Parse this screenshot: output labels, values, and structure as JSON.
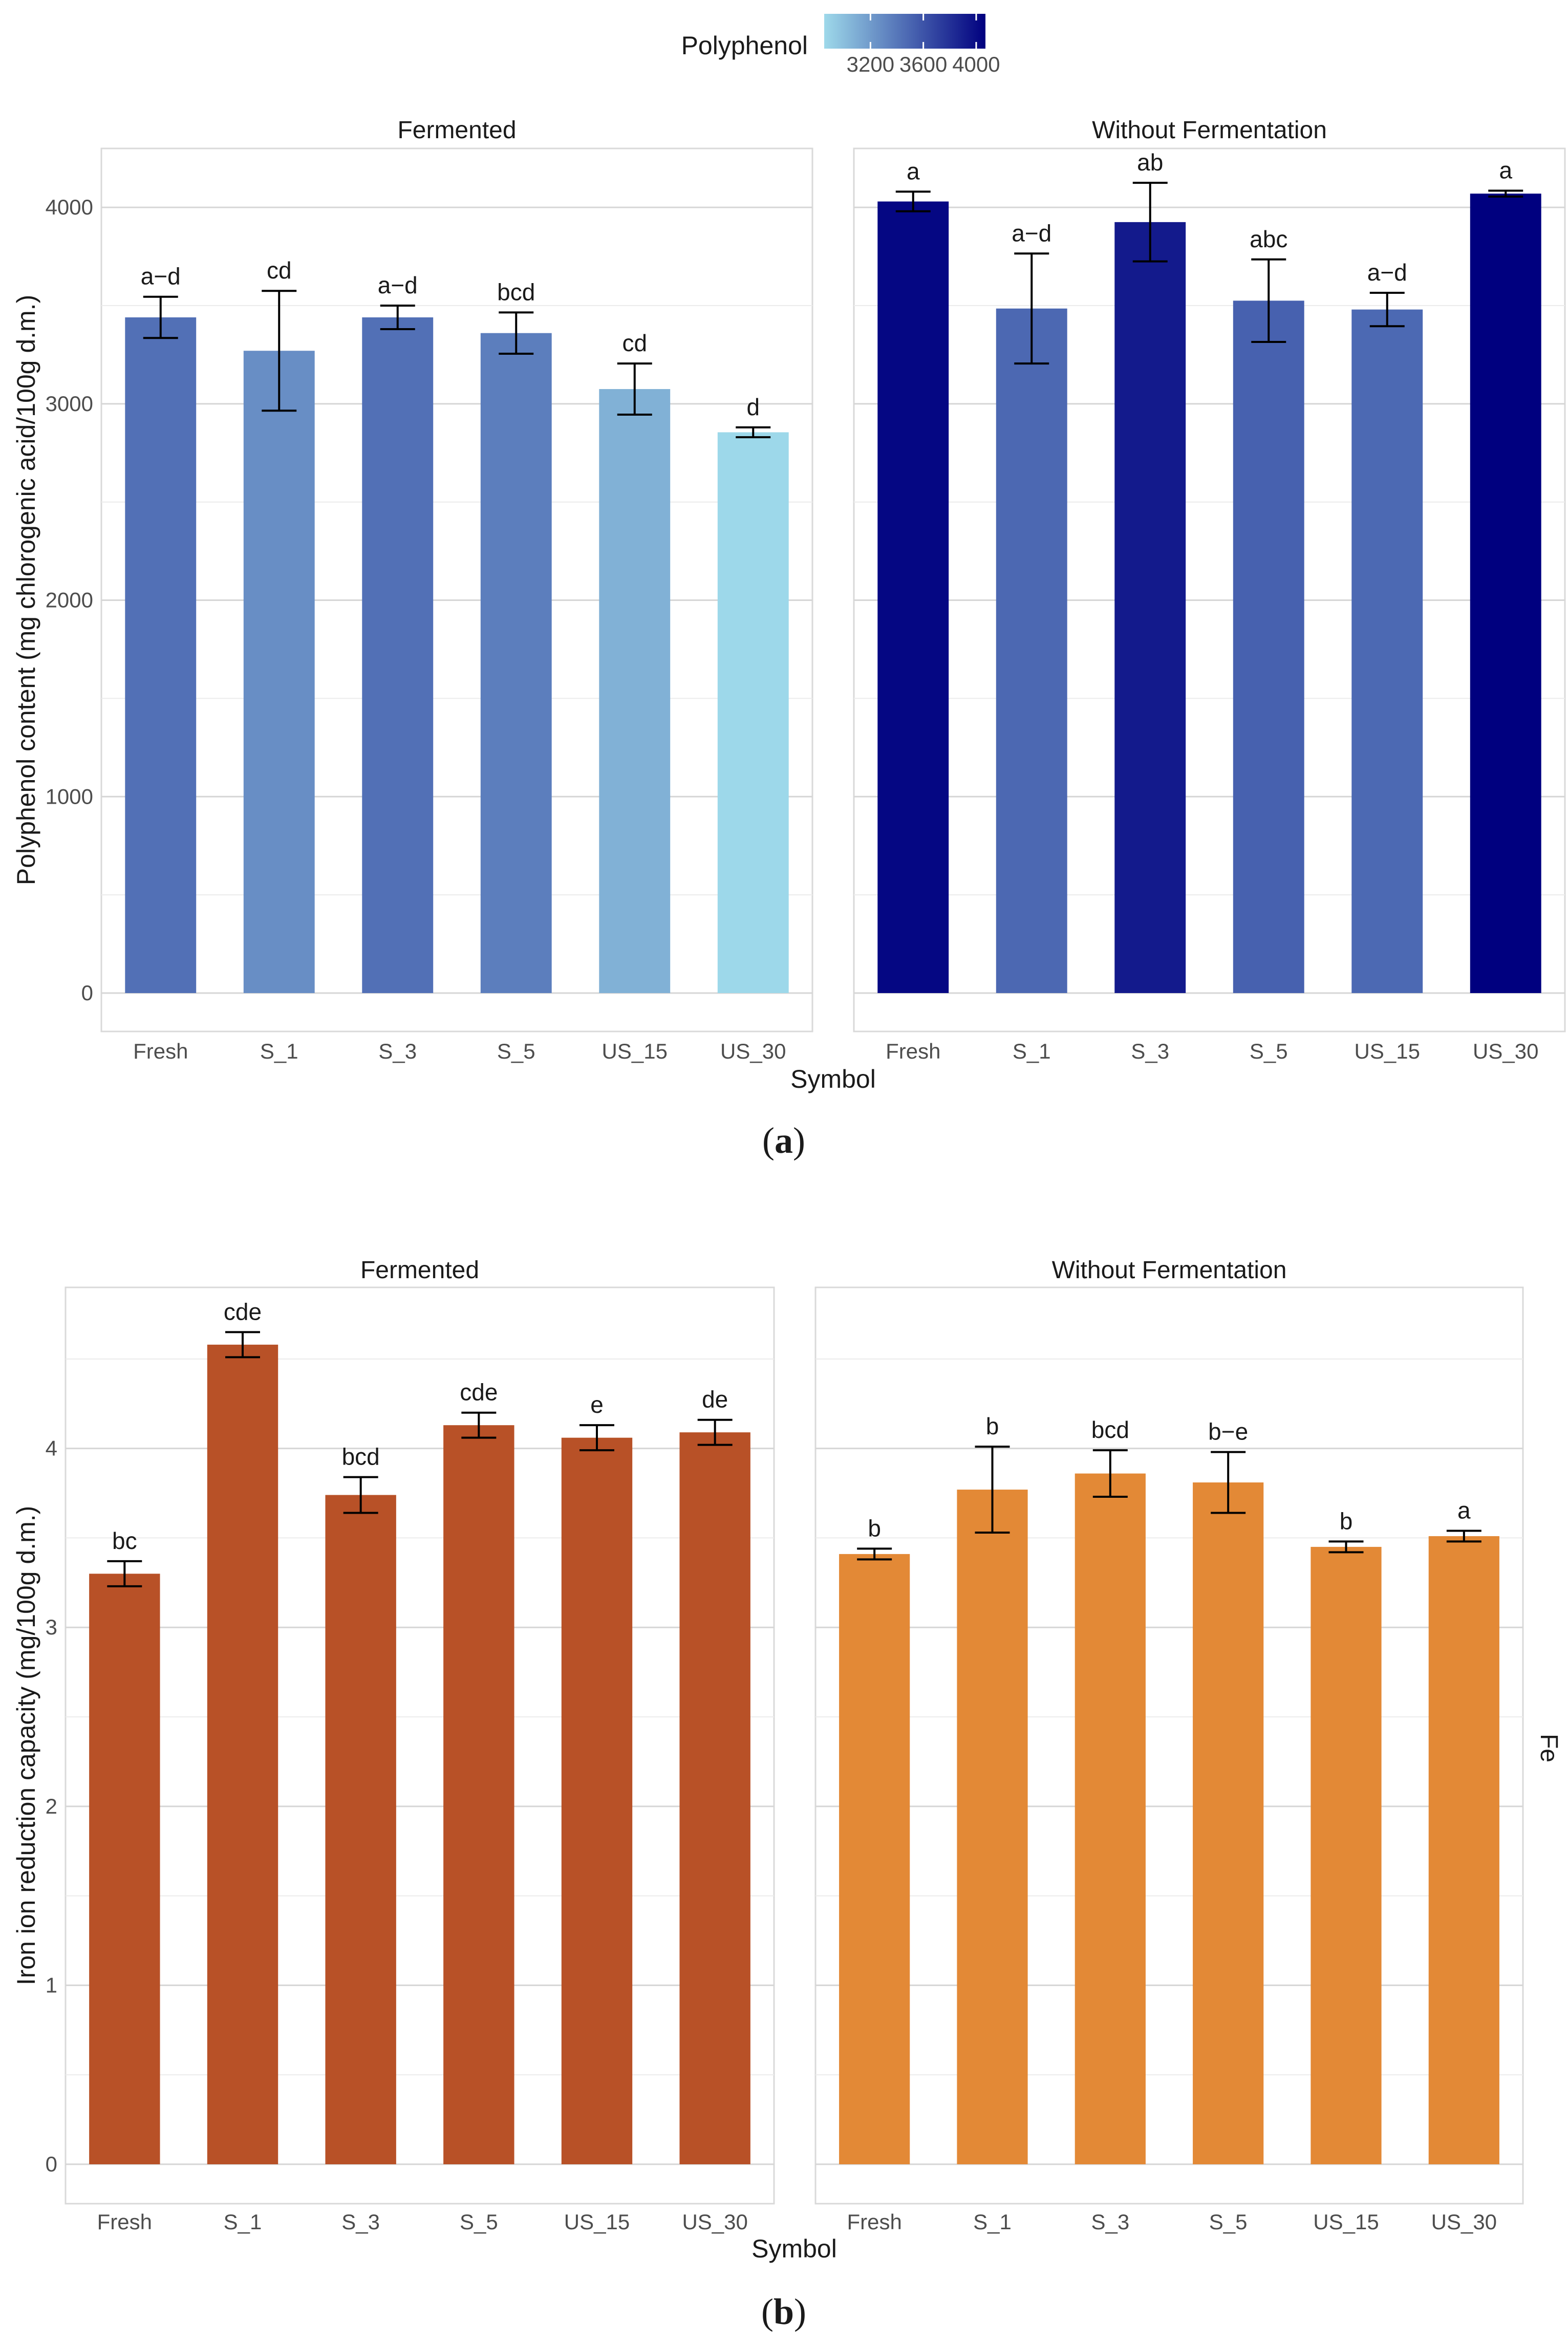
{
  "legend": {
    "title": "Polyphenol",
    "tick_labels": [
      "3200",
      "3600",
      "4000"
    ],
    "domain": [
      2850,
      4070
    ],
    "color_low": "#9ed9ea",
    "color_high": "#00007f"
  },
  "chart_data": [
    {
      "id": "a",
      "type": "bar",
      "caption": {
        "open": "(",
        "letter": "a",
        "close": ")"
      },
      "ylabel": "Polyphenol content (mg chlorogenic acid/100g d.m.)",
      "xlabel": "Symbol",
      "ylim": [
        0,
        4300
      ],
      "yticks": [
        0,
        1000,
        2000,
        3000,
        4000
      ],
      "ytick_labels": [
        "0",
        "1000",
        "2000",
        "3000",
        "4000"
      ],
      "categories": [
        "Fresh",
        "S_1",
        "S_3",
        "S_5",
        "US_15",
        "US_30"
      ],
      "color_mode": "gradient",
      "facets": [
        {
          "name": "Fermented",
          "values": [
            3440,
            3270,
            3440,
            3360,
            3075,
            2855
          ],
          "errors": [
            105,
            305,
            60,
            105,
            130,
            25
          ],
          "labels": [
            "a−d",
            "cd",
            "a−d",
            "bcd",
            "cd",
            "d"
          ]
        },
        {
          "name": "Without Fermentation",
          "values": [
            4030,
            3485,
            3925,
            3525,
            3480,
            4070
          ],
          "errors": [
            50,
            280,
            200,
            210,
            85,
            15
          ],
          "labels": [
            "a",
            "a−d",
            "ab",
            "abc",
            "a−d",
            "a"
          ]
        }
      ]
    },
    {
      "id": "b",
      "type": "bar",
      "caption": {
        "open": "(",
        "letter": "b",
        "close": ")"
      },
      "ylabel": "Iron ion reduction capacity (mg/100g d.m.)",
      "xlabel": "Symbol",
      "strip_right": "Fe",
      "ylim": [
        0,
        4.9
      ],
      "yticks": [
        0,
        1,
        2,
        3,
        4
      ],
      "ytick_labels": [
        "0",
        "1",
        "2",
        "3",
        "4"
      ],
      "categories": [
        "Fresh",
        "S_1",
        "S_3",
        "S_5",
        "US_15",
        "US_30"
      ],
      "color_mode": "fixed",
      "facets": [
        {
          "name": "Fermented",
          "color": "#b85127",
          "values": [
            3.3,
            4.58,
            3.74,
            4.13,
            4.06,
            4.09
          ],
          "errors": [
            0.07,
            0.07,
            0.1,
            0.07,
            0.07,
            0.07
          ],
          "labels": [
            "bc",
            "cde",
            "bcd",
            "cde",
            "e",
            "de"
          ]
        },
        {
          "name": "Without Fermentation",
          "color": "#e38936",
          "values": [
            3.41,
            3.77,
            3.86,
            3.81,
            3.45,
            3.51
          ],
          "errors": [
            0.03,
            0.24,
            0.13,
            0.17,
            0.03,
            0.03
          ],
          "labels": [
            "b",
            "b",
            "bcd",
            "b−e",
            "b",
            "a"
          ]
        }
      ]
    }
  ]
}
